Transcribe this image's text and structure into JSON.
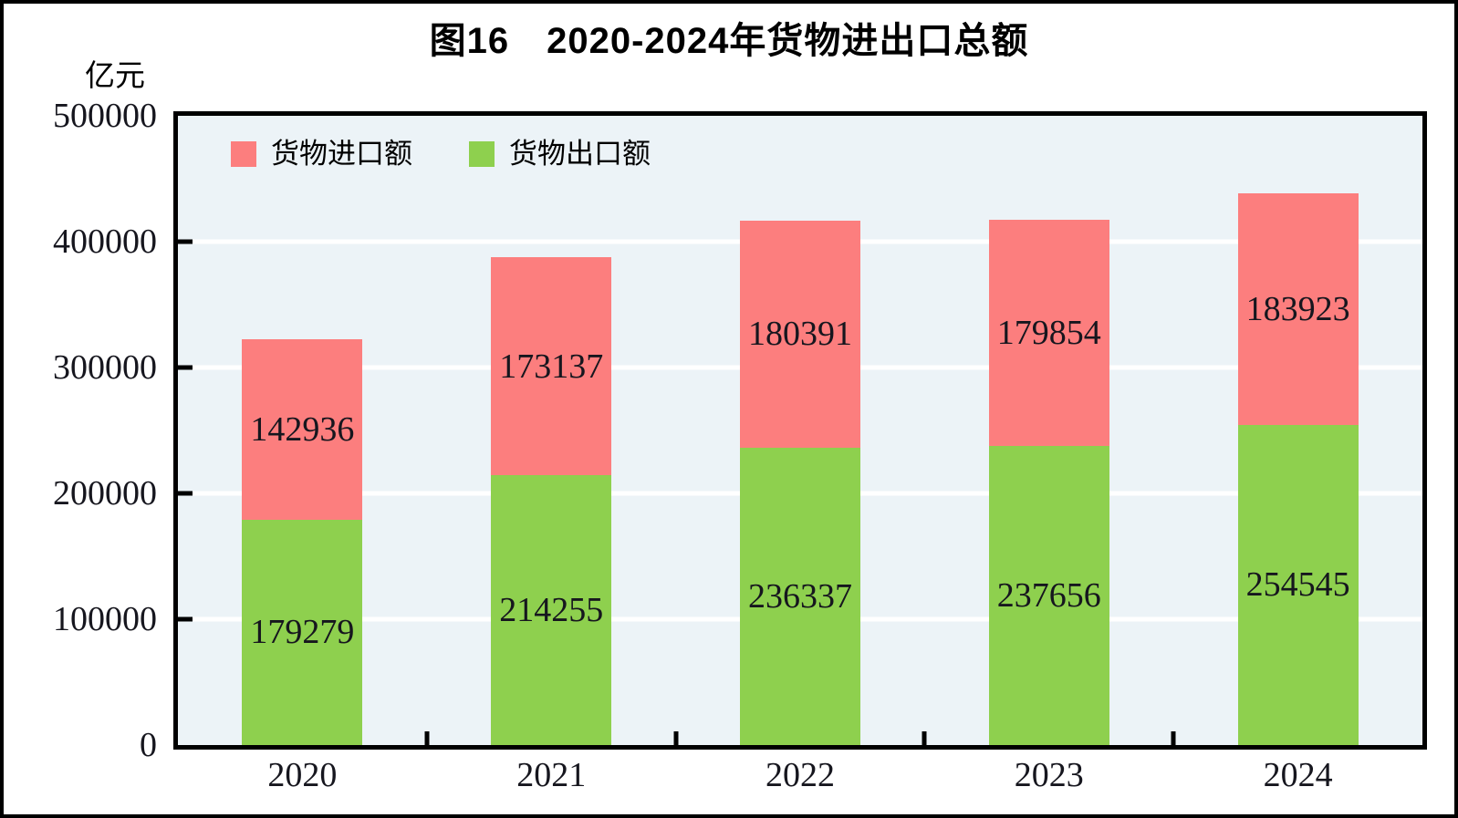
{
  "chart": {
    "title": "图16　2020-2024年货物进出口总额",
    "unit_label": "亿元",
    "colors": {
      "import_red": "#FC7E7E",
      "export_green": "#8ED04E",
      "plot_background": "#ECF3F7",
      "gridline": "#FFFFFF",
      "axis": "#000000",
      "value_text": "#16161E"
    },
    "legend": [
      {
        "label": "货物进口额",
        "color": "#FC7E7E"
      },
      {
        "label": "货物出口额",
        "color": "#8ED04E"
      }
    ]
  },
  "chart_data": {
    "type": "bar",
    "stacked": true,
    "title": "图16　2020-2024年货物进出口总额",
    "xlabel": "",
    "ylabel": "亿元",
    "categories": [
      "2020",
      "2021",
      "2022",
      "2023",
      "2024"
    ],
    "series": [
      {
        "name": "货物出口额",
        "color": "#8ED04E",
        "values": [
          179279,
          214255,
          236337,
          237656,
          254545
        ]
      },
      {
        "name": "货物进口额",
        "color": "#FC7E7E",
        "values": [
          142936,
          173137,
          180391,
          179854,
          183923
        ]
      }
    ],
    "ylim": [
      0,
      500000
    ],
    "yticks": [
      0,
      100000,
      200000,
      300000,
      400000,
      500000
    ],
    "grid": true,
    "gridline_color": "#FFFFFF",
    "legend_position": "top-left inside plot",
    "value_labels": "centered inside each segment"
  }
}
